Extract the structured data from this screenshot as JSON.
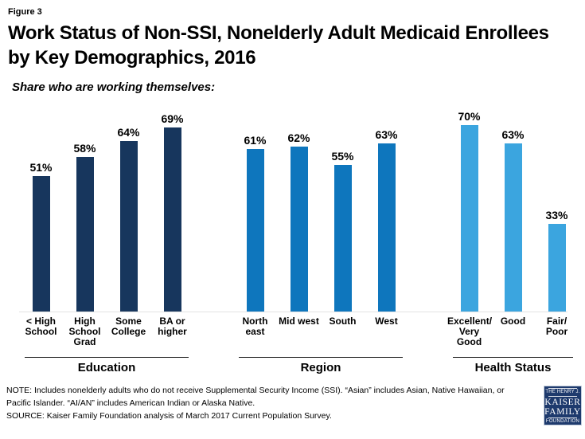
{
  "figure_label": "Figure 3",
  "title": "Work Status of Non-SSI, Nonelderly Adult Medicaid Enrollees by Key Demographics, 2016",
  "subtitle": "Share who are working themselves:",
  "chart_data": {
    "type": "bar",
    "unit": "percent",
    "ylim": [
      0,
      100
    ],
    "value_suffix": "%",
    "grid": false,
    "legend": "none",
    "groups": [
      {
        "label": "Education",
        "bar_color": "#17365d",
        "categories": [
          "< High School",
          "High School Grad",
          "Some College",
          "BA or higher"
        ],
        "values": [
          51,
          58,
          64,
          69
        ]
      },
      {
        "label": "Region",
        "bar_color": "#0e76bd",
        "categories": [
          "North east",
          "Mid west",
          "South",
          "West"
        ],
        "values": [
          61,
          62,
          55,
          63
        ]
      },
      {
        "label": "Health Status",
        "bar_color": "#3ba5df",
        "categories": [
          "Excellent/ Very Good",
          "Good",
          "Fair/ Poor"
        ],
        "values": [
          70,
          63,
          33
        ]
      }
    ]
  },
  "notes": {
    "note": "NOTE: Includes nonelderly adults who do not receive Supplemental Security Income (SSI). “Asian” includes Asian, Native Hawaiian, or Pacific Islander. “AI/AN” includes American Indian or Alaska Native.",
    "source": "SOURCE: Kaiser Family Foundation analysis of March 2017 Current Population Survey."
  },
  "logo": {
    "line1": "THE HENRY J.",
    "line2": "KAISER",
    "line3": "FAMILY",
    "line4": "FOUNDATION"
  }
}
